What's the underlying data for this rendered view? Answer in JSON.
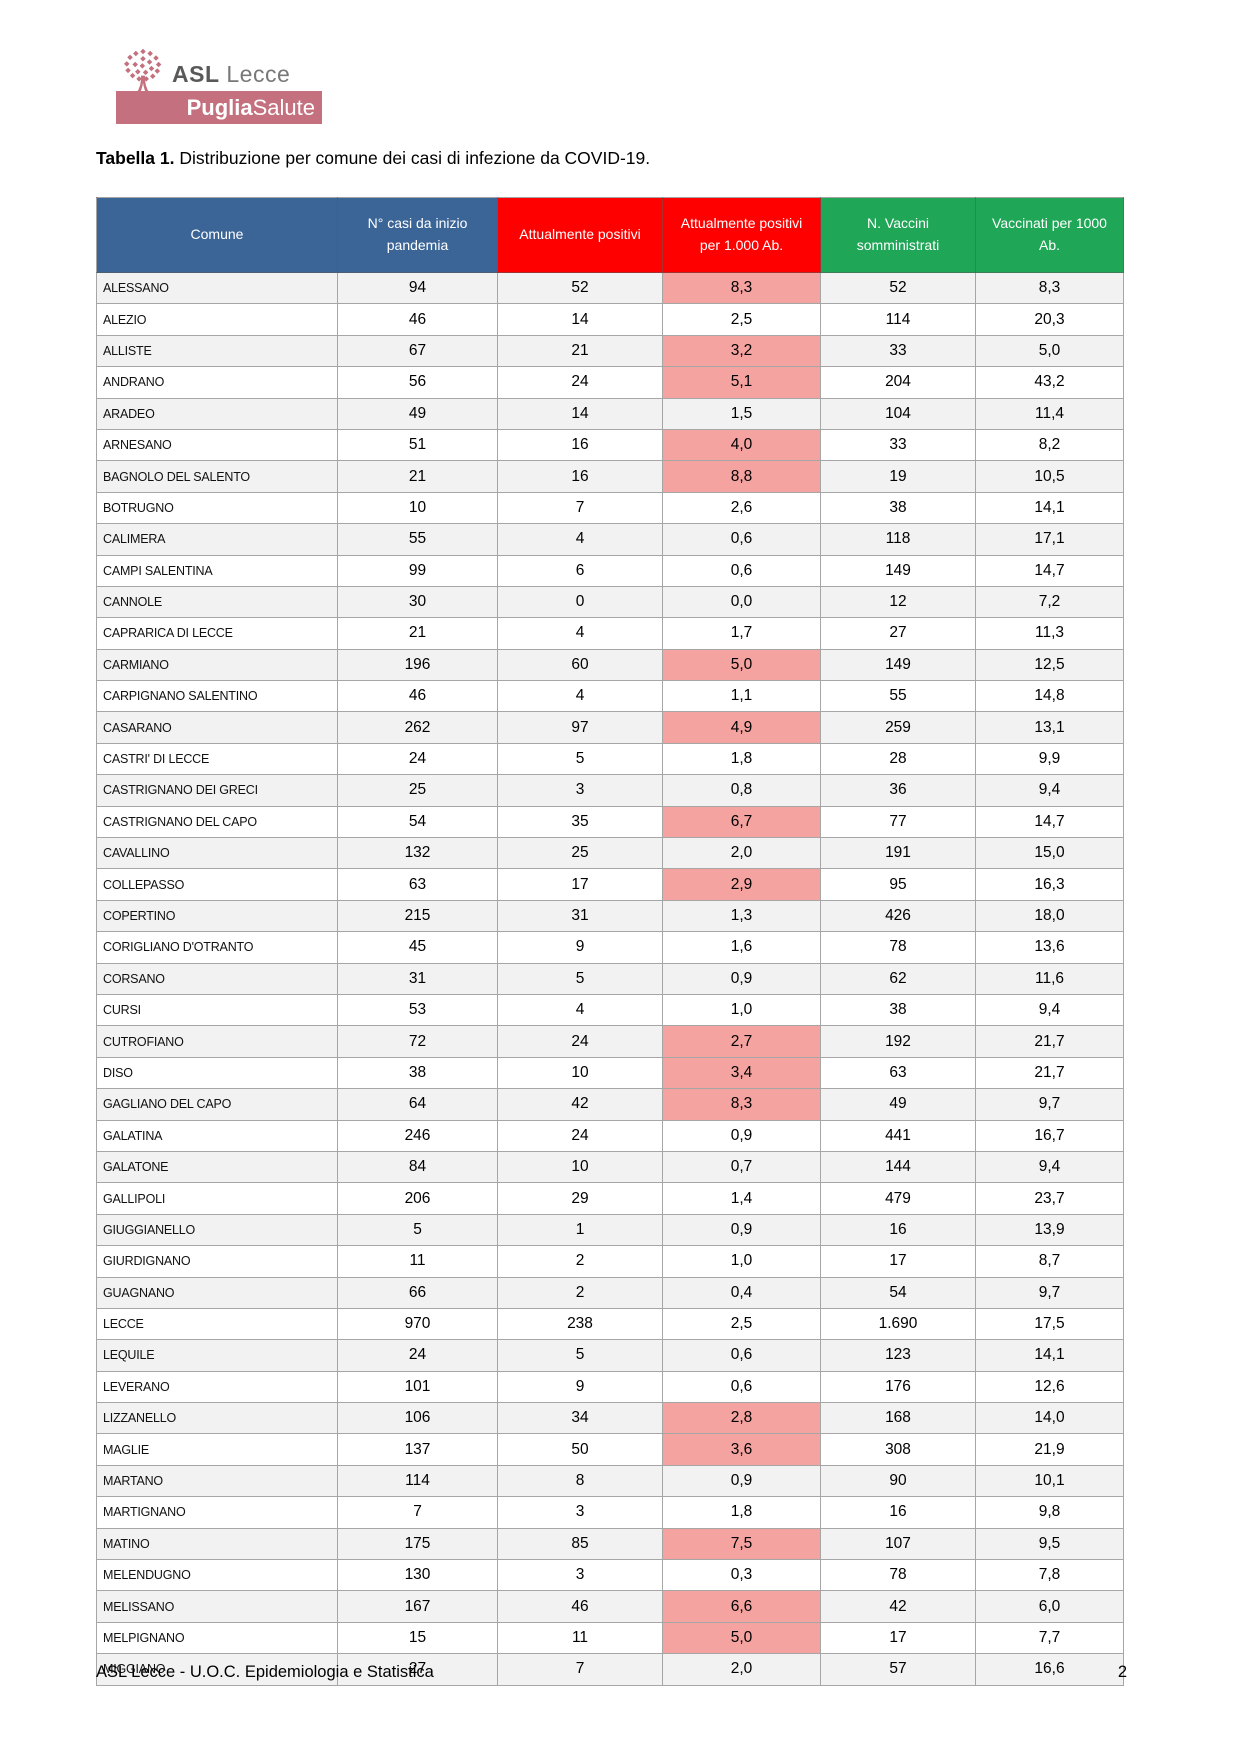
{
  "logo": {
    "asl_bold": "ASL",
    "asl_rest": "Lecce",
    "banner_bold": "Puglia",
    "banner_rest": "Salute",
    "banner_color": "#c4707e"
  },
  "title": {
    "bold": "Tabella 1.",
    "rest": " Distribuzione per comune dei casi di infezione da COVID-19."
  },
  "table": {
    "columns": [
      {
        "label": "Comune",
        "color": "#3b6596"
      },
      {
        "label": "N° casi da inizio pandemia",
        "color": "#3b6596"
      },
      {
        "label": "Attualmente positivi",
        "color": "#fe0000"
      },
      {
        "label": "Attualmente positivi per 1.000 Ab.",
        "color": "#fe0000"
      },
      {
        "label": "N. Vaccini somministrati",
        "color": "#1fa656"
      },
      {
        "label": "Vaccinati per 1000 Ab.",
        "color": "#1fa656"
      }
    ],
    "highlight_color": "#f5a3a0",
    "rows": [
      {
        "comune": "ALESSANO",
        "casi": "94",
        "positivi": "52",
        "positivi_per_1000": "8,3",
        "vaccini": "52",
        "vaccinati_per_1000": "8,3",
        "highlight": true
      },
      {
        "comune": "ALEZIO",
        "casi": "46",
        "positivi": "14",
        "positivi_per_1000": "2,5",
        "vaccini": "114",
        "vaccinati_per_1000": "20,3",
        "highlight": false
      },
      {
        "comune": "ALLISTE",
        "casi": "67",
        "positivi": "21",
        "positivi_per_1000": "3,2",
        "vaccini": "33",
        "vaccinati_per_1000": "5,0",
        "highlight": true
      },
      {
        "comune": "ANDRANO",
        "casi": "56",
        "positivi": "24",
        "positivi_per_1000": "5,1",
        "vaccini": "204",
        "vaccinati_per_1000": "43,2",
        "highlight": true
      },
      {
        "comune": "ARADEO",
        "casi": "49",
        "positivi": "14",
        "positivi_per_1000": "1,5",
        "vaccini": "104",
        "vaccinati_per_1000": "11,4",
        "highlight": false
      },
      {
        "comune": "ARNESANO",
        "casi": "51",
        "positivi": "16",
        "positivi_per_1000": "4,0",
        "vaccini": "33",
        "vaccinati_per_1000": "8,2",
        "highlight": true
      },
      {
        "comune": "BAGNOLO DEL SALENTO",
        "casi": "21",
        "positivi": "16",
        "positivi_per_1000": "8,8",
        "vaccini": "19",
        "vaccinati_per_1000": "10,5",
        "highlight": true
      },
      {
        "comune": "BOTRUGNO",
        "casi": "10",
        "positivi": "7",
        "positivi_per_1000": "2,6",
        "vaccini": "38",
        "vaccinati_per_1000": "14,1",
        "highlight": false
      },
      {
        "comune": "CALIMERA",
        "casi": "55",
        "positivi": "4",
        "positivi_per_1000": "0,6",
        "vaccini": "118",
        "vaccinati_per_1000": "17,1",
        "highlight": false
      },
      {
        "comune": "CAMPI SALENTINA",
        "casi": "99",
        "positivi": "6",
        "positivi_per_1000": "0,6",
        "vaccini": "149",
        "vaccinati_per_1000": "14,7",
        "highlight": false
      },
      {
        "comune": "CANNOLE",
        "casi": "30",
        "positivi": "0",
        "positivi_per_1000": "0,0",
        "vaccini": "12",
        "vaccinati_per_1000": "7,2",
        "highlight": false
      },
      {
        "comune": "CAPRARICA DI LECCE",
        "casi": "21",
        "positivi": "4",
        "positivi_per_1000": "1,7",
        "vaccini": "27",
        "vaccinati_per_1000": "11,3",
        "highlight": false
      },
      {
        "comune": "CARMIANO",
        "casi": "196",
        "positivi": "60",
        "positivi_per_1000": "5,0",
        "vaccini": "149",
        "vaccinati_per_1000": "12,5",
        "highlight": true
      },
      {
        "comune": "CARPIGNANO SALENTINO",
        "casi": "46",
        "positivi": "4",
        "positivi_per_1000": "1,1",
        "vaccini": "55",
        "vaccinati_per_1000": "14,8",
        "highlight": false
      },
      {
        "comune": "CASARANO",
        "casi": "262",
        "positivi": "97",
        "positivi_per_1000": "4,9",
        "vaccini": "259",
        "vaccinati_per_1000": "13,1",
        "highlight": true
      },
      {
        "comune": "CASTRI' DI LECCE",
        "casi": "24",
        "positivi": "5",
        "positivi_per_1000": "1,8",
        "vaccini": "28",
        "vaccinati_per_1000": "9,9",
        "highlight": false
      },
      {
        "comune": "CASTRIGNANO DEI GRECI",
        "casi": "25",
        "positivi": "3",
        "positivi_per_1000": "0,8",
        "vaccini": "36",
        "vaccinati_per_1000": "9,4",
        "highlight": false
      },
      {
        "comune": "CASTRIGNANO DEL CAPO",
        "casi": "54",
        "positivi": "35",
        "positivi_per_1000": "6,7",
        "vaccini": "77",
        "vaccinati_per_1000": "14,7",
        "highlight": true
      },
      {
        "comune": "CAVALLINO",
        "casi": "132",
        "positivi": "25",
        "positivi_per_1000": "2,0",
        "vaccini": "191",
        "vaccinati_per_1000": "15,0",
        "highlight": false
      },
      {
        "comune": "COLLEPASSO",
        "casi": "63",
        "positivi": "17",
        "positivi_per_1000": "2,9",
        "vaccini": "95",
        "vaccinati_per_1000": "16,3",
        "highlight": true
      },
      {
        "comune": "COPERTINO",
        "casi": "215",
        "positivi": "31",
        "positivi_per_1000": "1,3",
        "vaccini": "426",
        "vaccinati_per_1000": "18,0",
        "highlight": false
      },
      {
        "comune": "CORIGLIANO D'OTRANTO",
        "casi": "45",
        "positivi": "9",
        "positivi_per_1000": "1,6",
        "vaccini": "78",
        "vaccinati_per_1000": "13,6",
        "highlight": false
      },
      {
        "comune": "CORSANO",
        "casi": "31",
        "positivi": "5",
        "positivi_per_1000": "0,9",
        "vaccini": "62",
        "vaccinati_per_1000": "11,6",
        "highlight": false
      },
      {
        "comune": "CURSI",
        "casi": "53",
        "positivi": "4",
        "positivi_per_1000": "1,0",
        "vaccini": "38",
        "vaccinati_per_1000": "9,4",
        "highlight": false
      },
      {
        "comune": "CUTROFIANO",
        "casi": "72",
        "positivi": "24",
        "positivi_per_1000": "2,7",
        "vaccini": "192",
        "vaccinati_per_1000": "21,7",
        "highlight": true
      },
      {
        "comune": "DISO",
        "casi": "38",
        "positivi": "10",
        "positivi_per_1000": "3,4",
        "vaccini": "63",
        "vaccinati_per_1000": "21,7",
        "highlight": true
      },
      {
        "comune": "GAGLIANO DEL CAPO",
        "casi": "64",
        "positivi": "42",
        "positivi_per_1000": "8,3",
        "vaccini": "49",
        "vaccinati_per_1000": "9,7",
        "highlight": true
      },
      {
        "comune": "GALATINA",
        "casi": "246",
        "positivi": "24",
        "positivi_per_1000": "0,9",
        "vaccini": "441",
        "vaccinati_per_1000": "16,7",
        "highlight": false
      },
      {
        "comune": "GALATONE",
        "casi": "84",
        "positivi": "10",
        "positivi_per_1000": "0,7",
        "vaccini": "144",
        "vaccinati_per_1000": "9,4",
        "highlight": false
      },
      {
        "comune": "GALLIPOLI",
        "casi": "206",
        "positivi": "29",
        "positivi_per_1000": "1,4",
        "vaccini": "479",
        "vaccinati_per_1000": "23,7",
        "highlight": false
      },
      {
        "comune": "GIUGGIANELLO",
        "casi": "5",
        "positivi": "1",
        "positivi_per_1000": "0,9",
        "vaccini": "16",
        "vaccinati_per_1000": "13,9",
        "highlight": false
      },
      {
        "comune": "GIURDIGNANO",
        "casi": "11",
        "positivi": "2",
        "positivi_per_1000": "1,0",
        "vaccini": "17",
        "vaccinati_per_1000": "8,7",
        "highlight": false
      },
      {
        "comune": "GUAGNANO",
        "casi": "66",
        "positivi": "2",
        "positivi_per_1000": "0,4",
        "vaccini": "54",
        "vaccinati_per_1000": "9,7",
        "highlight": false
      },
      {
        "comune": "LECCE",
        "casi": "970",
        "positivi": "238",
        "positivi_per_1000": "2,5",
        "vaccini": "1.690",
        "vaccinati_per_1000": "17,5",
        "highlight": false
      },
      {
        "comune": "LEQUILE",
        "casi": "24",
        "positivi": "5",
        "positivi_per_1000": "0,6",
        "vaccini": "123",
        "vaccinati_per_1000": "14,1",
        "highlight": false
      },
      {
        "comune": "LEVERANO",
        "casi": "101",
        "positivi": "9",
        "positivi_per_1000": "0,6",
        "vaccini": "176",
        "vaccinati_per_1000": "12,6",
        "highlight": false
      },
      {
        "comune": "LIZZANELLO",
        "casi": "106",
        "positivi": "34",
        "positivi_per_1000": "2,8",
        "vaccini": "168",
        "vaccinati_per_1000": "14,0",
        "highlight": true
      },
      {
        "comune": "MAGLIE",
        "casi": "137",
        "positivi": "50",
        "positivi_per_1000": "3,6",
        "vaccini": "308",
        "vaccinati_per_1000": "21,9",
        "highlight": true
      },
      {
        "comune": "MARTANO",
        "casi": "114",
        "positivi": "8",
        "positivi_per_1000": "0,9",
        "vaccini": "90",
        "vaccinati_per_1000": "10,1",
        "highlight": false
      },
      {
        "comune": "MARTIGNANO",
        "casi": "7",
        "positivi": "3",
        "positivi_per_1000": "1,8",
        "vaccini": "16",
        "vaccinati_per_1000": "9,8",
        "highlight": false
      },
      {
        "comune": "MATINO",
        "casi": "175",
        "positivi": "85",
        "positivi_per_1000": "7,5",
        "vaccini": "107",
        "vaccinati_per_1000": "9,5",
        "highlight": true
      },
      {
        "comune": "MELENDUGNO",
        "casi": "130",
        "positivi": "3",
        "positivi_per_1000": "0,3",
        "vaccini": "78",
        "vaccinati_per_1000": "7,8",
        "highlight": false
      },
      {
        "comune": "MELISSANO",
        "casi": "167",
        "positivi": "46",
        "positivi_per_1000": "6,6",
        "vaccini": "42",
        "vaccinati_per_1000": "6,0",
        "highlight": true
      },
      {
        "comune": "MELPIGNANO",
        "casi": "15",
        "positivi": "11",
        "positivi_per_1000": "5,0",
        "vaccini": "17",
        "vaccinati_per_1000": "7,7",
        "highlight": true
      },
      {
        "comune": "MIGGIANO",
        "casi": "27",
        "positivi": "7",
        "positivi_per_1000": "2,0",
        "vaccini": "57",
        "vaccinati_per_1000": "16,6",
        "highlight": false
      }
    ]
  },
  "footer": {
    "left": "ASL Lecce - U.O.C. Epidemiologia e Statistica",
    "page": "2"
  }
}
